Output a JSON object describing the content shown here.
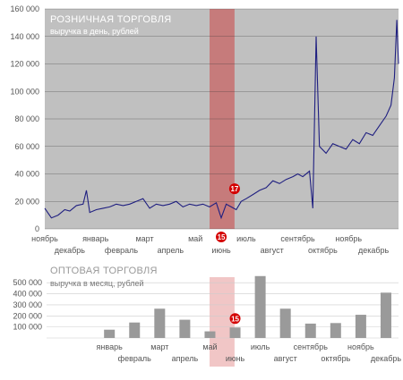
{
  "colors": {
    "retail_bg": "#c0c0c0",
    "retail_line": "#1f1f80",
    "highlight_band": "#e8a0a0",
    "highlight_band_dark": "#c86464",
    "wholesale_bar": "#9a9a9a",
    "marker": "#d40000",
    "title_text": "#ffffff",
    "wholesale_title_text": "#999999",
    "axis_text": "#555555",
    "grid": "#333333"
  },
  "chart_data": [
    {
      "type": "line",
      "title": "РОЗНИЧНАЯ ТОРГОВЛЯ",
      "subtitle": "выручка в день, рублей",
      "yticks": [
        "0",
        "20 000",
        "40 000",
        "60 000",
        "80 000",
        "100 000",
        "120 000",
        "140 000",
        "160 000"
      ],
      "ylim": [
        0,
        160000
      ],
      "xlim": [
        0,
        425
      ],
      "x_ticks_row1": [
        {
          "label": "ноябрь",
          "x": 0
        },
        {
          "label": "январь",
          "x": 61
        },
        {
          "label": "март",
          "x": 120
        },
        {
          "label": "май",
          "x": 181
        },
        {
          "label": "июль",
          "x": 242
        },
        {
          "label": "сентябрь",
          "x": 304
        },
        {
          "label": "ноябрь",
          "x": 365
        }
      ],
      "x_ticks_row2": [
        {
          "label": "декабрь",
          "x": 30
        },
        {
          "label": "февраль",
          "x": 92
        },
        {
          "label": "апрель",
          "x": 151
        },
        {
          "label": "июнь",
          "x": 212
        },
        {
          "label": "август",
          "x": 273
        },
        {
          "label": "октябрь",
          "x": 334
        },
        {
          "label": "декабрь",
          "x": 395
        }
      ],
      "highlight": {
        "from": 198,
        "to": 228
      },
      "markers": [
        {
          "label": "17",
          "x": 228,
          "y": 24000
        },
        {
          "label": "15",
          "x": 212,
          "y": 0
        }
      ],
      "series": [
        {
          "points": [
            [
              0,
              15000
            ],
            [
              8,
              8000
            ],
            [
              16,
              10000
            ],
            [
              24,
              14000
            ],
            [
              30,
              13000
            ],
            [
              38,
              17000
            ],
            [
              46,
              18000
            ],
            [
              50,
              28000
            ],
            [
              54,
              12000
            ],
            [
              62,
              14000
            ],
            [
              70,
              15000
            ],
            [
              78,
              16000
            ],
            [
              86,
              18000
            ],
            [
              94,
              17000
            ],
            [
              102,
              18000
            ],
            [
              110,
              20000
            ],
            [
              118,
              22000
            ],
            [
              126,
              15000
            ],
            [
              134,
              18000
            ],
            [
              142,
              17000
            ],
            [
              150,
              18000
            ],
            [
              158,
              20000
            ],
            [
              166,
              16000
            ],
            [
              174,
              18000
            ],
            [
              182,
              17000
            ],
            [
              190,
              18000
            ],
            [
              198,
              16000
            ],
            [
              206,
              19000
            ],
            [
              212,
              8000
            ],
            [
              218,
              18000
            ],
            [
              224,
              16000
            ],
            [
              230,
              14000
            ],
            [
              236,
              20000
            ],
            [
              242,
              22000
            ],
            [
              250,
              25000
            ],
            [
              258,
              28000
            ],
            [
              266,
              30000
            ],
            [
              274,
              35000
            ],
            [
              282,
              33000
            ],
            [
              290,
              36000
            ],
            [
              298,
              38000
            ],
            [
              304,
              40000
            ],
            [
              310,
              38000
            ],
            [
              318,
              42000
            ],
            [
              322,
              15000
            ],
            [
              326,
              140000
            ],
            [
              330,
              60000
            ],
            [
              338,
              55000
            ],
            [
              346,
              62000
            ],
            [
              354,
              60000
            ],
            [
              362,
              58000
            ],
            [
              370,
              65000
            ],
            [
              378,
              62000
            ],
            [
              386,
              70000
            ],
            [
              394,
              68000
            ],
            [
              402,
              75000
            ],
            [
              410,
              82000
            ],
            [
              416,
              90000
            ],
            [
              420,
              110000
            ],
            [
              423,
              152000
            ],
            [
              425,
              120000
            ]
          ]
        }
      ]
    },
    {
      "type": "bar",
      "title": "ОПТОВАЯ ТОРГОВЛЯ",
      "subtitle": "выручка в месяц, рублей",
      "yticks": [
        "100 000",
        "200 000",
        "300 000",
        "400 000",
        "500 000"
      ],
      "ytick_values": [
        100000,
        200000,
        300000,
        400000,
        500000
      ],
      "ylim": [
        0,
        550000
      ],
      "categories": [
        "ноябрь",
        "декабрь",
        "январь",
        "февраль",
        "март",
        "апрель",
        "май",
        "июнь",
        "июль",
        "август",
        "сентябрь",
        "октябрь",
        "ноябрь",
        "декабрь"
      ],
      "values": [
        0,
        0,
        75000,
        140000,
        265000,
        165000,
        60000,
        95000,
        560000,
        265000,
        130000,
        135000,
        210000,
        410000
      ],
      "category_labels_row1": [
        "январь",
        "март",
        "май",
        "июль",
        "сентябрь",
        "ноябрь"
      ],
      "category_labels_row2": [
        "февраль",
        "апрель",
        "июнь",
        "август",
        "октябрь",
        "декабрь"
      ],
      "marker": {
        "label": "15",
        "category_index": 7
      }
    }
  ]
}
